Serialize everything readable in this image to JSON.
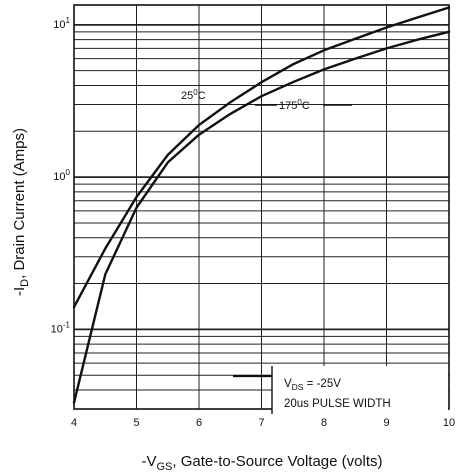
{
  "chart_data": {
    "type": "line",
    "title": "",
    "xlabel": {
      "prefix": "-V",
      "sub": "GS",
      "rest": ", Gate-to-Source Voltage (volts)"
    },
    "ylabel": {
      "prefix": "-I",
      "sub": "D",
      "rest": ", Drain Current (Amps)"
    },
    "xlim": [
      4,
      10
    ],
    "ylim": [
      0.03,
      13.5
    ],
    "yscale": "log",
    "grid": true,
    "x_ticks": [
      "4",
      "5",
      "6",
      "7",
      "8",
      "9",
      "10"
    ],
    "y_ticks": [
      {
        "value": 10,
        "base": "10",
        "exp": "1"
      },
      {
        "value": 1,
        "base": "10",
        "exp": "0"
      },
      {
        "value": 0.1,
        "base": "10",
        "exp": "-1"
      }
    ],
    "series": [
      {
        "name": "25°C",
        "x": [
          4.0,
          4.5,
          5.0,
          5.5,
          6.0,
          6.5,
          7.0,
          7.5,
          8.0,
          8.5,
          9.0,
          9.5,
          10.0
        ],
        "y": [
          0.14,
          0.34,
          0.74,
          1.4,
          2.2,
          3.1,
          4.2,
          5.5,
          6.8,
          8.1,
          9.6,
          11.2,
          13.0
        ]
      },
      {
        "name": "175°C",
        "x": [
          4.0,
          4.5,
          5.0,
          5.5,
          6.0,
          6.5,
          7.0,
          7.5,
          8.0,
          8.5,
          9.0,
          9.5,
          10.0
        ],
        "y": [
          0.033,
          0.23,
          0.63,
          1.25,
          1.9,
          2.6,
          3.4,
          4.2,
          5.1,
          6.0,
          7.0,
          8.0,
          9.0
        ]
      }
    ],
    "annotations": {
      "label_25": {
        "base": "25",
        "sup": "0",
        "unit": "C"
      },
      "label_175": {
        "base": "175",
        "sup": "0",
        "unit": "C"
      },
      "vds": {
        "prefix": "V",
        "sub": "DS",
        "rest": " = -25V"
      },
      "pulse": "20us PULSE WIDTH"
    }
  }
}
